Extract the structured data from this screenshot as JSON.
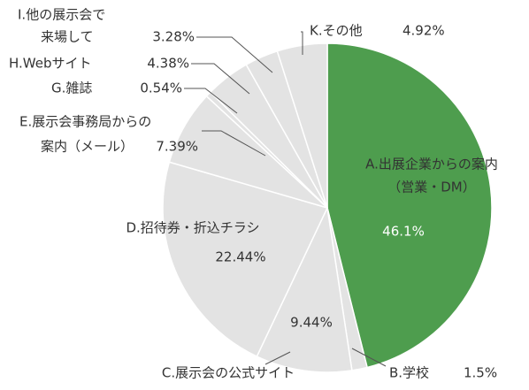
{
  "chart_data": {
    "type": "pie",
    "categories": [
      [
        "A.出展企業からの案内",
        "（営業・DM）"
      ],
      [
        "B.学校"
      ],
      [
        "C.展示会の公式サイト"
      ],
      [
        "D.招待券・折込チラシ"
      ],
      [
        "E.展示会事務局からの",
        "案内（メール）"
      ],
      [
        "G.雑誌"
      ],
      [
        "H.Webサイト"
      ],
      [
        "I.他の展示会で",
        "来場して"
      ],
      [
        "K.その他"
      ]
    ],
    "values": [
      46.1,
      1.5,
      9.44,
      22.44,
      7.39,
      0.54,
      4.38,
      3.28,
      4.92
    ],
    "value_labels": [
      "46.1%",
      "1.5%",
      "9.44%",
      "22.44%",
      "7.39%",
      "0.54%",
      "4.38%",
      "3.28%",
      "4.92%"
    ],
    "colors": [
      "#4e9d4e",
      "#e3e3e3",
      "#e3e3e3",
      "#e3e3e3",
      "#e3e3e3",
      "#e3e3e3",
      "#e3e3e3",
      "#e3e3e3",
      "#e3e3e3"
    ]
  }
}
